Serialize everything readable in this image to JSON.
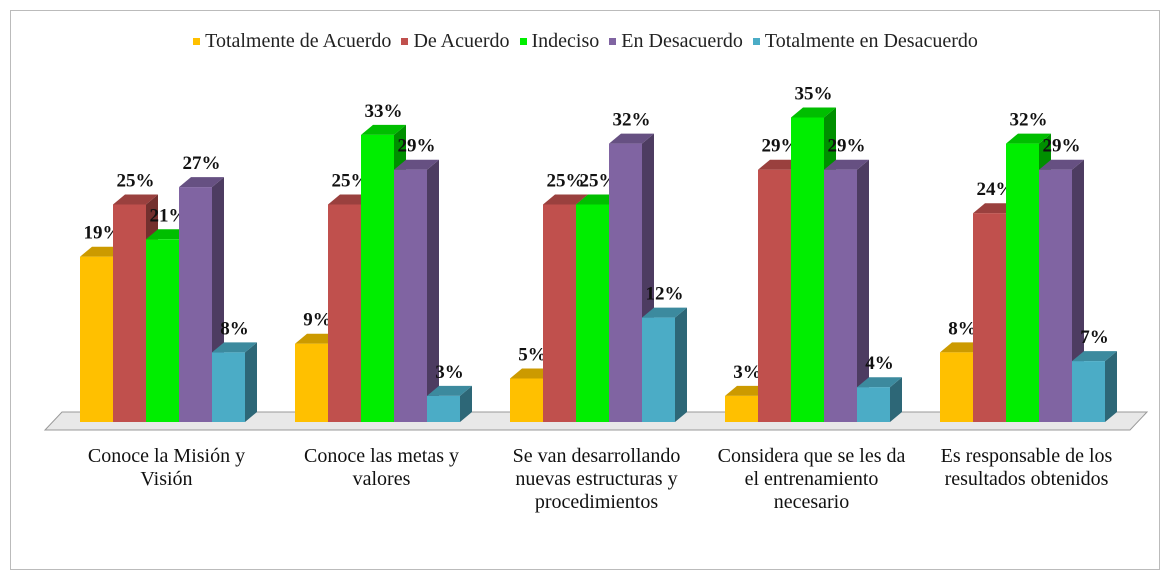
{
  "chart_data": {
    "type": "bar3d",
    "categories": [
      "Conoce la Misión y Visión",
      "Conoce las metas y valores",
      "Se van desarrollando nuevas estructuras y procedimientos",
      "Considera que se les da el entrenamiento necesario",
      "Es responsable de los resultados obtenidos"
    ],
    "series": [
      {
        "name": "Totalmente de Acuerdo",
        "color": "#ffc000",
        "values": [
          19,
          9,
          5,
          3,
          8
        ],
        "value_labels": [
          "19%",
          "9%",
          "5%",
          "3%",
          "8%"
        ]
      },
      {
        "name": "De Acuerdo",
        "color": "#c0504d",
        "values": [
          25,
          25,
          25,
          29,
          24
        ],
        "value_labels": [
          "25%",
          "25%",
          "25%",
          "29%",
          "24%"
        ]
      },
      {
        "name": "Indeciso",
        "color": "#00ee00",
        "values": [
          21,
          33,
          25,
          35,
          32
        ],
        "value_labels": [
          "21%",
          "33%",
          "25%",
          "35%",
          "32%"
        ]
      },
      {
        "name": "En Desacuerdo",
        "color": "#8064a2",
        "values": [
          27,
          29,
          32,
          29,
          29
        ],
        "value_labels": [
          "27%",
          "29%",
          "32%",
          "29%",
          "29%"
        ]
      },
      {
        "name": "Totalmente en Desacuerdo",
        "color": "#4bacc6",
        "values": [
          8,
          3,
          12,
          4,
          7
        ],
        "value_labels": [
          "8%",
          "3%",
          "12%",
          "4%",
          "7%"
        ]
      }
    ],
    "legend": "top"
  }
}
